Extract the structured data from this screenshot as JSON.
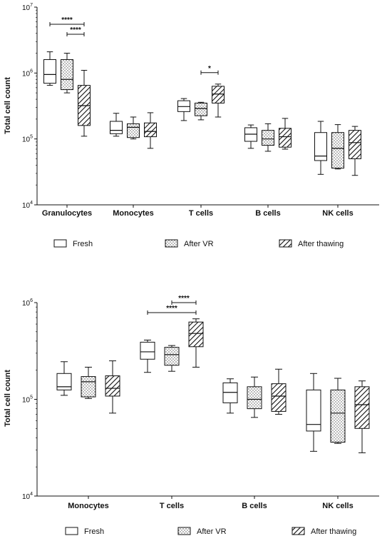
{
  "chart_data": [
    {
      "type": "boxplot",
      "ylabel": "Total cell count",
      "yscale": "log",
      "ylim": [
        10000,
        10000000
      ],
      "yticks": [
        {
          "value": 10000,
          "base": "10",
          "exp": "4"
        },
        {
          "value": 100000,
          "base": "10",
          "exp": "5"
        },
        {
          "value": 1000000,
          "base": "10",
          "exp": "6"
        },
        {
          "value": 10000000,
          "base": "10",
          "exp": "7"
        }
      ],
      "categories": [
        "Granulocytes",
        "Monocytes",
        "T cells",
        "B cells",
        "NK cells"
      ],
      "legend": {
        "placement": "bottom",
        "entries": [
          "Fresh",
          "After VR",
          "After thawing"
        ]
      },
      "series": [
        {
          "name": "Fresh",
          "pattern": "open",
          "boxes": [
            {
              "min": 650000,
              "q1": 700000,
              "median": 950000,
              "q3": 1600000,
              "max": 2100000
            },
            {
              "min": 110000,
              "q1": 120000,
              "median": 135000,
              "q3": 185000,
              "max": 245000
            },
            {
              "min": 190000,
              "q1": 260000,
              "median": 310000,
              "q3": 380000,
              "max": 410000
            },
            {
              "min": 72000,
              "q1": 92000,
              "median": 118000,
              "q3": 148000,
              "max": 163000
            },
            {
              "min": 29000,
              "q1": 47000,
              "median": 55000,
              "q3": 125000,
              "max": 185000
            }
          ]
        },
        {
          "name": "After VR",
          "pattern": "dotted",
          "boxes": [
            {
              "min": 500000,
              "q1": 560000,
              "median": 800000,
              "q3": 1600000,
              "max": 2000000
            },
            {
              "min": 100000,
              "q1": 105000,
              "median": 150000,
              "q3": 170000,
              "max": 215000
            },
            {
              "min": 195000,
              "q1": 225000,
              "median": 290000,
              "q3": 350000,
              "max": 360000
            },
            {
              "min": 65000,
              "q1": 80000,
              "median": 100000,
              "q3": 135000,
              "max": 170000
            },
            {
              "min": 35000,
              "q1": 36000,
              "median": 72000,
              "q3": 125000,
              "max": 165000
            }
          ]
        },
        {
          "name": "After thawing",
          "pattern": "hatched",
          "boxes": [
            {
              "min": 110000,
              "q1": 160000,
              "median": 320000,
              "q3": 650000,
              "max": 1100000
            },
            {
              "min": 72000,
              "q1": 108000,
              "median": 130000,
              "q3": 175000,
              "max": 250000
            },
            {
              "min": 215000,
              "q1": 350000,
              "median": 480000,
              "q3": 630000,
              "max": 680000
            },
            {
              "min": 70000,
              "q1": 75000,
              "median": 108000,
              "q3": 145000,
              "max": 205000
            },
            {
              "min": 28000,
              "q1": 50000,
              "median": 88000,
              "q3": 135000,
              "max": 155000
            }
          ]
        }
      ],
      "significance": [
        {
          "category": "Granulocytes",
          "from": "Fresh",
          "to": "After thawing",
          "label": "****",
          "level": 0
        },
        {
          "category": "Granulocytes",
          "from": "After VR",
          "to": "After thawing",
          "label": "****",
          "level": 1
        },
        {
          "category": "T cells",
          "from": "After VR",
          "to": "After thawing",
          "label": "*",
          "level": 0
        }
      ]
    },
    {
      "type": "boxplot",
      "ylabel": "Total cell count",
      "yscale": "log",
      "ylim": [
        10000,
        1000000
      ],
      "yticks": [
        {
          "value": 10000,
          "base": "10",
          "exp": "4"
        },
        {
          "value": 100000,
          "base": "10",
          "exp": "5"
        },
        {
          "value": 1000000,
          "base": "10",
          "exp": "6"
        }
      ],
      "categories": [
        "Monocytes",
        "T cells",
        "B cells",
        "NK cells"
      ],
      "legend": {
        "placement": "bottom",
        "entries": [
          "Fresh",
          "After VR",
          "After thawing"
        ]
      },
      "series": [
        {
          "name": "Fresh",
          "pattern": "open",
          "boxes": [
            {
              "min": 110000,
              "q1": 125000,
              "median": 135000,
              "q3": 185000,
              "max": 245000
            },
            {
              "min": 190000,
              "q1": 260000,
              "median": 310000,
              "q3": 390000,
              "max": 410000
            },
            {
              "min": 72000,
              "q1": 92000,
              "median": 118000,
              "q3": 148000,
              "max": 163000
            },
            {
              "min": 29000,
              "q1": 47000,
              "median": 55000,
              "q3": 125000,
              "max": 185000
            }
          ]
        },
        {
          "name": "After VR",
          "pattern": "dotted",
          "boxes": [
            {
              "min": 102000,
              "q1": 106000,
              "median": 152000,
              "q3": 172000,
              "max": 215000
            },
            {
              "min": 195000,
              "q1": 225000,
              "median": 290000,
              "q3": 345000,
              "max": 360000
            },
            {
              "min": 65000,
              "q1": 80000,
              "median": 100000,
              "q3": 135000,
              "max": 170000
            },
            {
              "min": 35000,
              "q1": 36000,
              "median": 72000,
              "q3": 125000,
              "max": 165000
            }
          ]
        },
        {
          "name": "After thawing",
          "pattern": "hatched",
          "boxes": [
            {
              "min": 72000,
              "q1": 108000,
              "median": 130000,
              "q3": 175000,
              "max": 250000
            },
            {
              "min": 215000,
              "q1": 350000,
              "median": 480000,
              "q3": 630000,
              "max": 680000
            },
            {
              "min": 70000,
              "q1": 75000,
              "median": 108000,
              "q3": 145000,
              "max": 205000
            },
            {
              "min": 28000,
              "q1": 50000,
              "median": 88000,
              "q3": 135000,
              "max": 155000
            }
          ]
        }
      ],
      "significance": [
        {
          "category": "T cells",
          "from": "Fresh",
          "to": "After thawing",
          "label": "****",
          "level": 0
        },
        {
          "category": "T cells",
          "from": "After VR",
          "to": "After thawing",
          "label": "****",
          "level": 1
        }
      ]
    }
  ]
}
